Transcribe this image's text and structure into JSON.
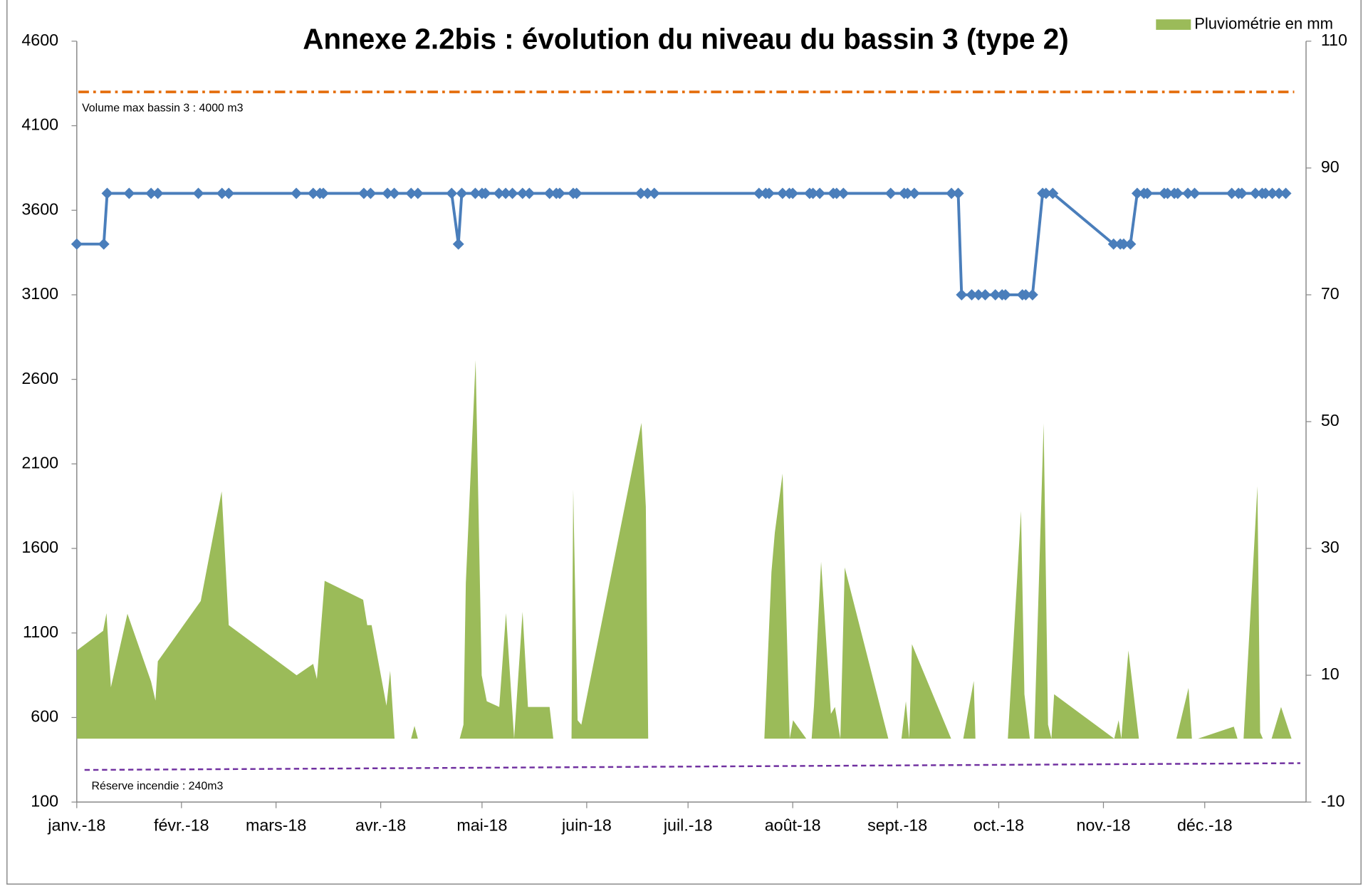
{
  "chart_data": {
    "type": "line",
    "title": "Annexe 2.2bis : évolution du niveau du bassin 3 (type 2)",
    "xlim": [
      0,
      364
    ],
    "xticks": [
      {
        "value": 0,
        "label": "janv.-18"
      },
      {
        "value": 31,
        "label": "févr.-18"
      },
      {
        "value": 59,
        "label": "mars-18"
      },
      {
        "value": 90,
        "label": "avr.-18"
      },
      {
        "value": 120,
        "label": "mai-18"
      },
      {
        "value": 151,
        "label": "juin-18"
      },
      {
        "value": 181,
        "label": "juil.-18"
      },
      {
        "value": 212,
        "label": "août-18"
      },
      {
        "value": 243,
        "label": "sept.-18"
      },
      {
        "value": 273,
        "label": "oct.-18"
      },
      {
        "value": 304,
        "label": "nov.-18"
      },
      {
        "value": 334,
        "label": "déc.-18"
      }
    ],
    "ylim": [
      100,
      4600
    ],
    "yticks": [
      100,
      600,
      1100,
      1600,
      2100,
      2600,
      3100,
      3600,
      4100,
      4600
    ],
    "y2lim": [
      -10,
      110
    ],
    "y2ticks": [
      -10,
      10,
      30,
      50,
      70,
      90,
      110
    ],
    "legend": "top-right",
    "series": [
      {
        "color": "#4a7ebb",
        "marker": "diamond",
        "x": [
          0,
          8,
          9,
          15.5,
          22,
          24,
          36,
          43,
          45,
          65,
          70,
          72,
          73,
          85,
          87,
          92,
          94,
          99,
          101,
          111,
          113,
          114,
          118,
          120,
          121,
          125,
          127,
          129,
          132,
          134,
          140,
          142,
          143,
          147,
          148,
          167,
          169,
          171,
          202,
          204,
          205,
          209,
          211,
          212,
          217,
          218,
          220,
          224,
          225,
          227,
          241,
          245,
          246,
          248,
          259,
          261,
          262,
          265,
          267,
          269,
          272,
          274,
          275,
          280,
          281,
          283,
          286,
          287,
          289,
          307,
          309,
          310,
          312,
          314,
          316,
          317,
          322,
          323,
          325,
          326,
          329,
          331,
          342,
          344,
          345,
          349,
          351,
          352,
          354,
          356,
          358
        ],
        "values": [
          3400,
          3400,
          3700,
          3700,
          3700,
          3700,
          3700,
          3700,
          3700,
          3700,
          3700,
          3700,
          3700,
          3700,
          3700,
          3700,
          3700,
          3700,
          3700,
          3700,
          3400,
          3700,
          3700,
          3700,
          3700,
          3700,
          3700,
          3700,
          3700,
          3700,
          3700,
          3700,
          3700,
          3700,
          3700,
          3700,
          3700,
          3700,
          3700,
          3700,
          3700,
          3700,
          3700,
          3700,
          3700,
          3700,
          3700,
          3700,
          3700,
          3700,
          3700,
          3700,
          3700,
          3700,
          3700,
          3700,
          3100,
          3100,
          3100,
          3100,
          3100,
          3100,
          3100,
          3100,
          3100,
          3100,
          3700,
          3700,
          3700,
          3400,
          3400,
          3400,
          3400,
          3700,
          3700,
          3700,
          3700,
          3700,
          3700,
          3700,
          3700,
          3700,
          3700,
          3700,
          3700,
          3700,
          3700,
          3700,
          3700,
          3700,
          3700
        ]
      },
      {
        "name": "Pluviométrie en mm",
        "type": "area",
        "axis": "y2",
        "color": "#9bbb59",
        "x": [
          0,
          7.8,
          8.8,
          10.1,
          15,
          22,
          23.3,
          24,
          36.7,
          42.9,
          45,
          65.1,
          70,
          71.1,
          73.4,
          84.8,
          86,
          87.3,
          91.7,
          92.8,
          94.1,
          99,
          100,
          101,
          113.4,
          114.5,
          115.2,
          118.1,
          119.9,
          121.4,
          125.1,
          127.1,
          129.5,
          132,
          133.6,
          140,
          141.1,
          146.5,
          147,
          148.3,
          149.4,
          167.2,
          168.5,
          169.2,
          203.6,
          205.7,
          206.7,
          209,
          211.1,
          212.1,
          216,
          217.6,
          218.3,
          220.4,
          223.3,
          224.5,
          226.1,
          227.4,
          240.3,
          244.2,
          245.5,
          246.5,
          247.3,
          258.9,
          262.5,
          265.6,
          266.1,
          275.7,
          279.6,
          280.6,
          282.2,
          283.5,
          286.3,
          287.6,
          288.6,
          289.4,
          307.2,
          308.5,
          309.3,
          311.4,
          314.5,
          325.6,
          329.2,
          330.2,
          332,
          342.6,
          343.7,
          345.5,
          349.6,
          350.4,
          351.2,
          353.8,
          356.6,
          359.7
        ],
        "values": [
          13.9,
          17,
          19.8,
          8.1,
          19.7,
          9,
          6,
          12.2,
          21.7,
          39,
          17.9,
          10,
          11.8,
          9.4,
          24.9,
          21.9,
          17.9,
          17.9,
          5.2,
          10.7,
          0,
          0,
          2,
          0,
          0,
          2.2,
          24.5,
          59.7,
          10,
          5.9,
          5,
          19.8,
          0,
          20,
          5,
          5,
          0,
          0,
          39.3,
          2.9,
          2.2,
          49.8,
          36.6,
          0,
          0,
          26.3,
          32.5,
          41.8,
          0,
          2.9,
          0,
          0,
          5.2,
          27.9,
          3.9,
          5,
          0,
          27,
          0,
          0,
          5.9,
          0,
          14.9,
          0,
          0,
          9.1,
          0,
          0,
          35.9,
          7,
          0,
          0,
          49.7,
          2.2,
          0,
          7,
          0,
          2.9,
          0,
          13.9,
          0,
          0,
          8,
          0,
          0,
          1.9,
          0,
          0,
          39.8,
          1,
          0,
          0,
          5,
          0
        ]
      }
    ],
    "reference_lines": [
      {
        "label": "Volume max bassin 3 : 4000  m3",
        "color": "#e46c0a",
        "style": "dash-dot",
        "x": [
          0.5,
          360.5
        ],
        "values": [
          4300,
          4300
        ]
      },
      {
        "label": "Réserve incendie : 240m3",
        "color": "#7030a0",
        "style": "dashed",
        "x": [
          2.3,
          362.3
        ],
        "values": [
          290,
          330
        ]
      }
    ]
  }
}
